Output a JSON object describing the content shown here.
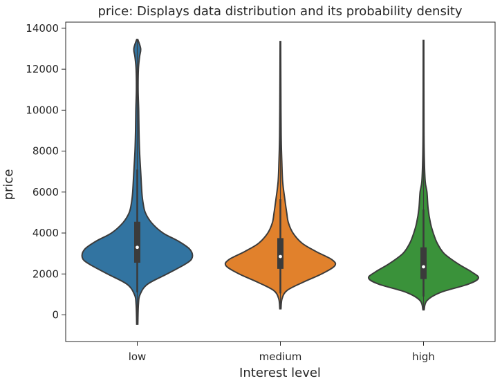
{
  "chart_data": {
    "type": "violin",
    "title": "price: Displays data distribution and its probability density",
    "xlabel": "Interest level",
    "ylabel": "price",
    "ylim": [
      -1300,
      14300
    ],
    "yticks": [
      0,
      2000,
      4000,
      6000,
      8000,
      10000,
      12000,
      14000
    ],
    "categories": [
      "low",
      "medium",
      "high"
    ],
    "colors": [
      "#3274a1",
      "#e1812c",
      "#3a923a"
    ],
    "violins": [
      {
        "category": "low",
        "min": -450,
        "q1": 2550,
        "median": 3300,
        "q3": 4550,
        "max": 13450,
        "whisker_low": 1100,
        "whisker_high": 7100,
        "density": [
          [
            -450,
            0.01
          ],
          [
            500,
            0.02
          ],
          [
            1000,
            0.05
          ],
          [
            1500,
            0.18
          ],
          [
            2000,
            0.52
          ],
          [
            2500,
            0.85
          ],
          [
            2800,
            0.96
          ],
          [
            3200,
            0.92
          ],
          [
            3600,
            0.72
          ],
          [
            4000,
            0.45
          ],
          [
            4500,
            0.25
          ],
          [
            5000,
            0.14
          ],
          [
            5500,
            0.1
          ],
          [
            6000,
            0.08
          ],
          [
            7000,
            0.06
          ],
          [
            8000,
            0.04
          ],
          [
            9000,
            0.03
          ],
          [
            10000,
            0.025
          ],
          [
            11000,
            0.015
          ],
          [
            12000,
            0.02
          ],
          [
            12600,
            0.04
          ],
          [
            13000,
            0.06
          ],
          [
            13450,
            0.01
          ]
        ]
      },
      {
        "category": "medium",
        "min": 300,
        "q1": 2250,
        "median": 2850,
        "q3": 3750,
        "max": 13350,
        "whisker_low": 1050,
        "whisker_high": 5650,
        "density": [
          [
            300,
            0.01
          ],
          [
            800,
            0.03
          ],
          [
            1200,
            0.12
          ],
          [
            1600,
            0.4
          ],
          [
            2000,
            0.72
          ],
          [
            2400,
            0.95
          ],
          [
            2700,
            0.9
          ],
          [
            3100,
            0.62
          ],
          [
            3500,
            0.38
          ],
          [
            4000,
            0.22
          ],
          [
            4500,
            0.14
          ],
          [
            5000,
            0.11
          ],
          [
            5600,
            0.08
          ],
          [
            6500,
            0.04
          ],
          [
            7500,
            0.025
          ],
          [
            8500,
            0.015
          ],
          [
            10000,
            0.01
          ],
          [
            13350,
            0.005
          ]
        ]
      },
      {
        "category": "high",
        "min": 250,
        "q1": 1750,
        "median": 2350,
        "q3": 3300,
        "max": 13400,
        "whisker_low": 900,
        "whisker_high": 5150,
        "density": [
          [
            250,
            0.01
          ],
          [
            700,
            0.06
          ],
          [
            1100,
            0.3
          ],
          [
            1500,
            0.78
          ],
          [
            1800,
            0.96
          ],
          [
            2100,
            0.84
          ],
          [
            2500,
            0.6
          ],
          [
            3000,
            0.36
          ],
          [
            3500,
            0.24
          ],
          [
            4000,
            0.17
          ],
          [
            4500,
            0.12
          ],
          [
            5200,
            0.08
          ],
          [
            6000,
            0.06
          ],
          [
            6500,
            0.03
          ],
          [
            7500,
            0.015
          ],
          [
            9000,
            0.008
          ],
          [
            13400,
            0.005
          ]
        ]
      }
    ]
  }
}
